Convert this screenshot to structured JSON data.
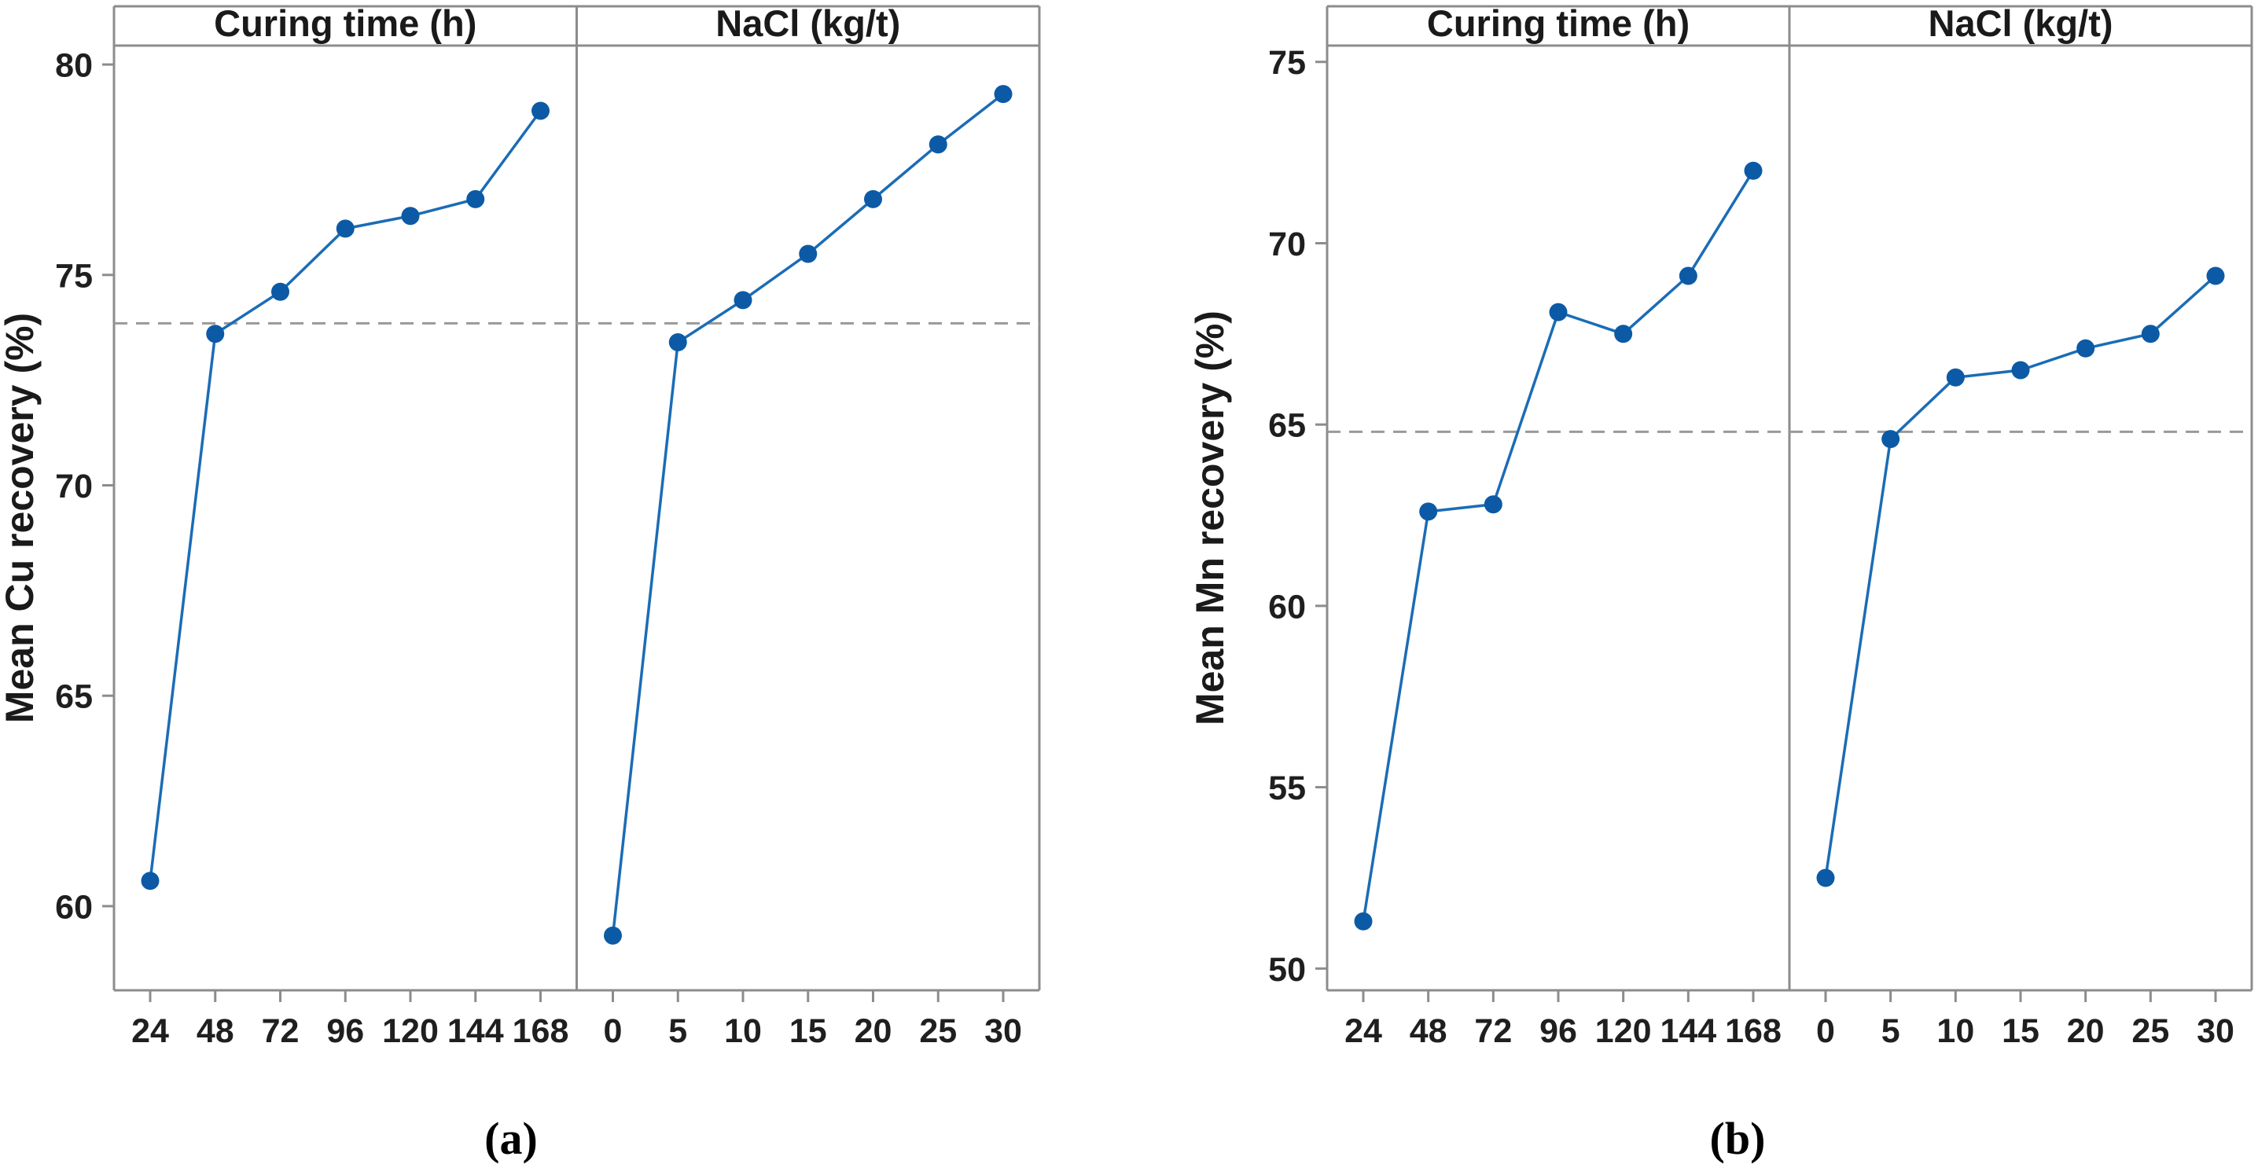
{
  "style": {
    "line_color": "#1b6cb5",
    "marker_color": "#0c5aa6",
    "frame_color": "#8c8c8c",
    "mean_line_color": "#999999",
    "text_color": "#1a1a1a",
    "background": "#ffffff"
  },
  "chart_data": [
    {
      "type": "line",
      "title": "",
      "caption": "(a)",
      "ylabel": "Mean Cu recovery (%)",
      "ylim": [
        58.0,
        80.45
      ],
      "yticks": [
        60,
        65,
        70,
        75,
        80
      ],
      "mean_line": 73.85,
      "grid": false,
      "legend": "none",
      "panels": [
        {
          "title": "Curing time (h)",
          "x_tick_labels": [
            "24",
            "48",
            "72",
            "96",
            "120",
            "144",
            "168"
          ],
          "x": [
            24,
            48,
            72,
            96,
            120,
            144,
            168
          ],
          "y": [
            60.6,
            73.6,
            74.6,
            76.1,
            76.4,
            76.8,
            78.9
          ]
        },
        {
          "title": "NaCl (kg/t)",
          "x_tick_labels": [
            "0",
            "5",
            "10",
            "15",
            "20",
            "25",
            "30"
          ],
          "x": [
            0,
            5,
            10,
            15,
            20,
            25,
            30
          ],
          "y": [
            59.3,
            73.4,
            74.4,
            75.5,
            76.8,
            78.1,
            79.3
          ]
        }
      ]
    },
    {
      "type": "line",
      "title": "",
      "caption": "(b)",
      "ylabel": "Mean Mn recovery (%)",
      "ylim": [
        49.4,
        75.45
      ],
      "yticks": [
        50,
        55,
        60,
        65,
        70,
        75
      ],
      "mean_line": 64.8,
      "grid": false,
      "legend": "none",
      "panels": [
        {
          "title": "Curing time (h)",
          "x_tick_labels": [
            "24",
            "48",
            "72",
            "96",
            "120",
            "144",
            "168"
          ],
          "x": [
            24,
            48,
            72,
            96,
            120,
            144,
            168
          ],
          "y": [
            51.3,
            62.6,
            62.8,
            68.1,
            67.5,
            69.1,
            72.0
          ]
        },
        {
          "title": "NaCl (kg/t)",
          "x_tick_labels": [
            "0",
            "5",
            "10",
            "15",
            "20",
            "25",
            "30"
          ],
          "x": [
            0,
            5,
            10,
            15,
            20,
            25,
            30
          ],
          "y": [
            52.5,
            64.6,
            66.3,
            66.5,
            67.1,
            67.5,
            69.1
          ]
        }
      ]
    }
  ]
}
